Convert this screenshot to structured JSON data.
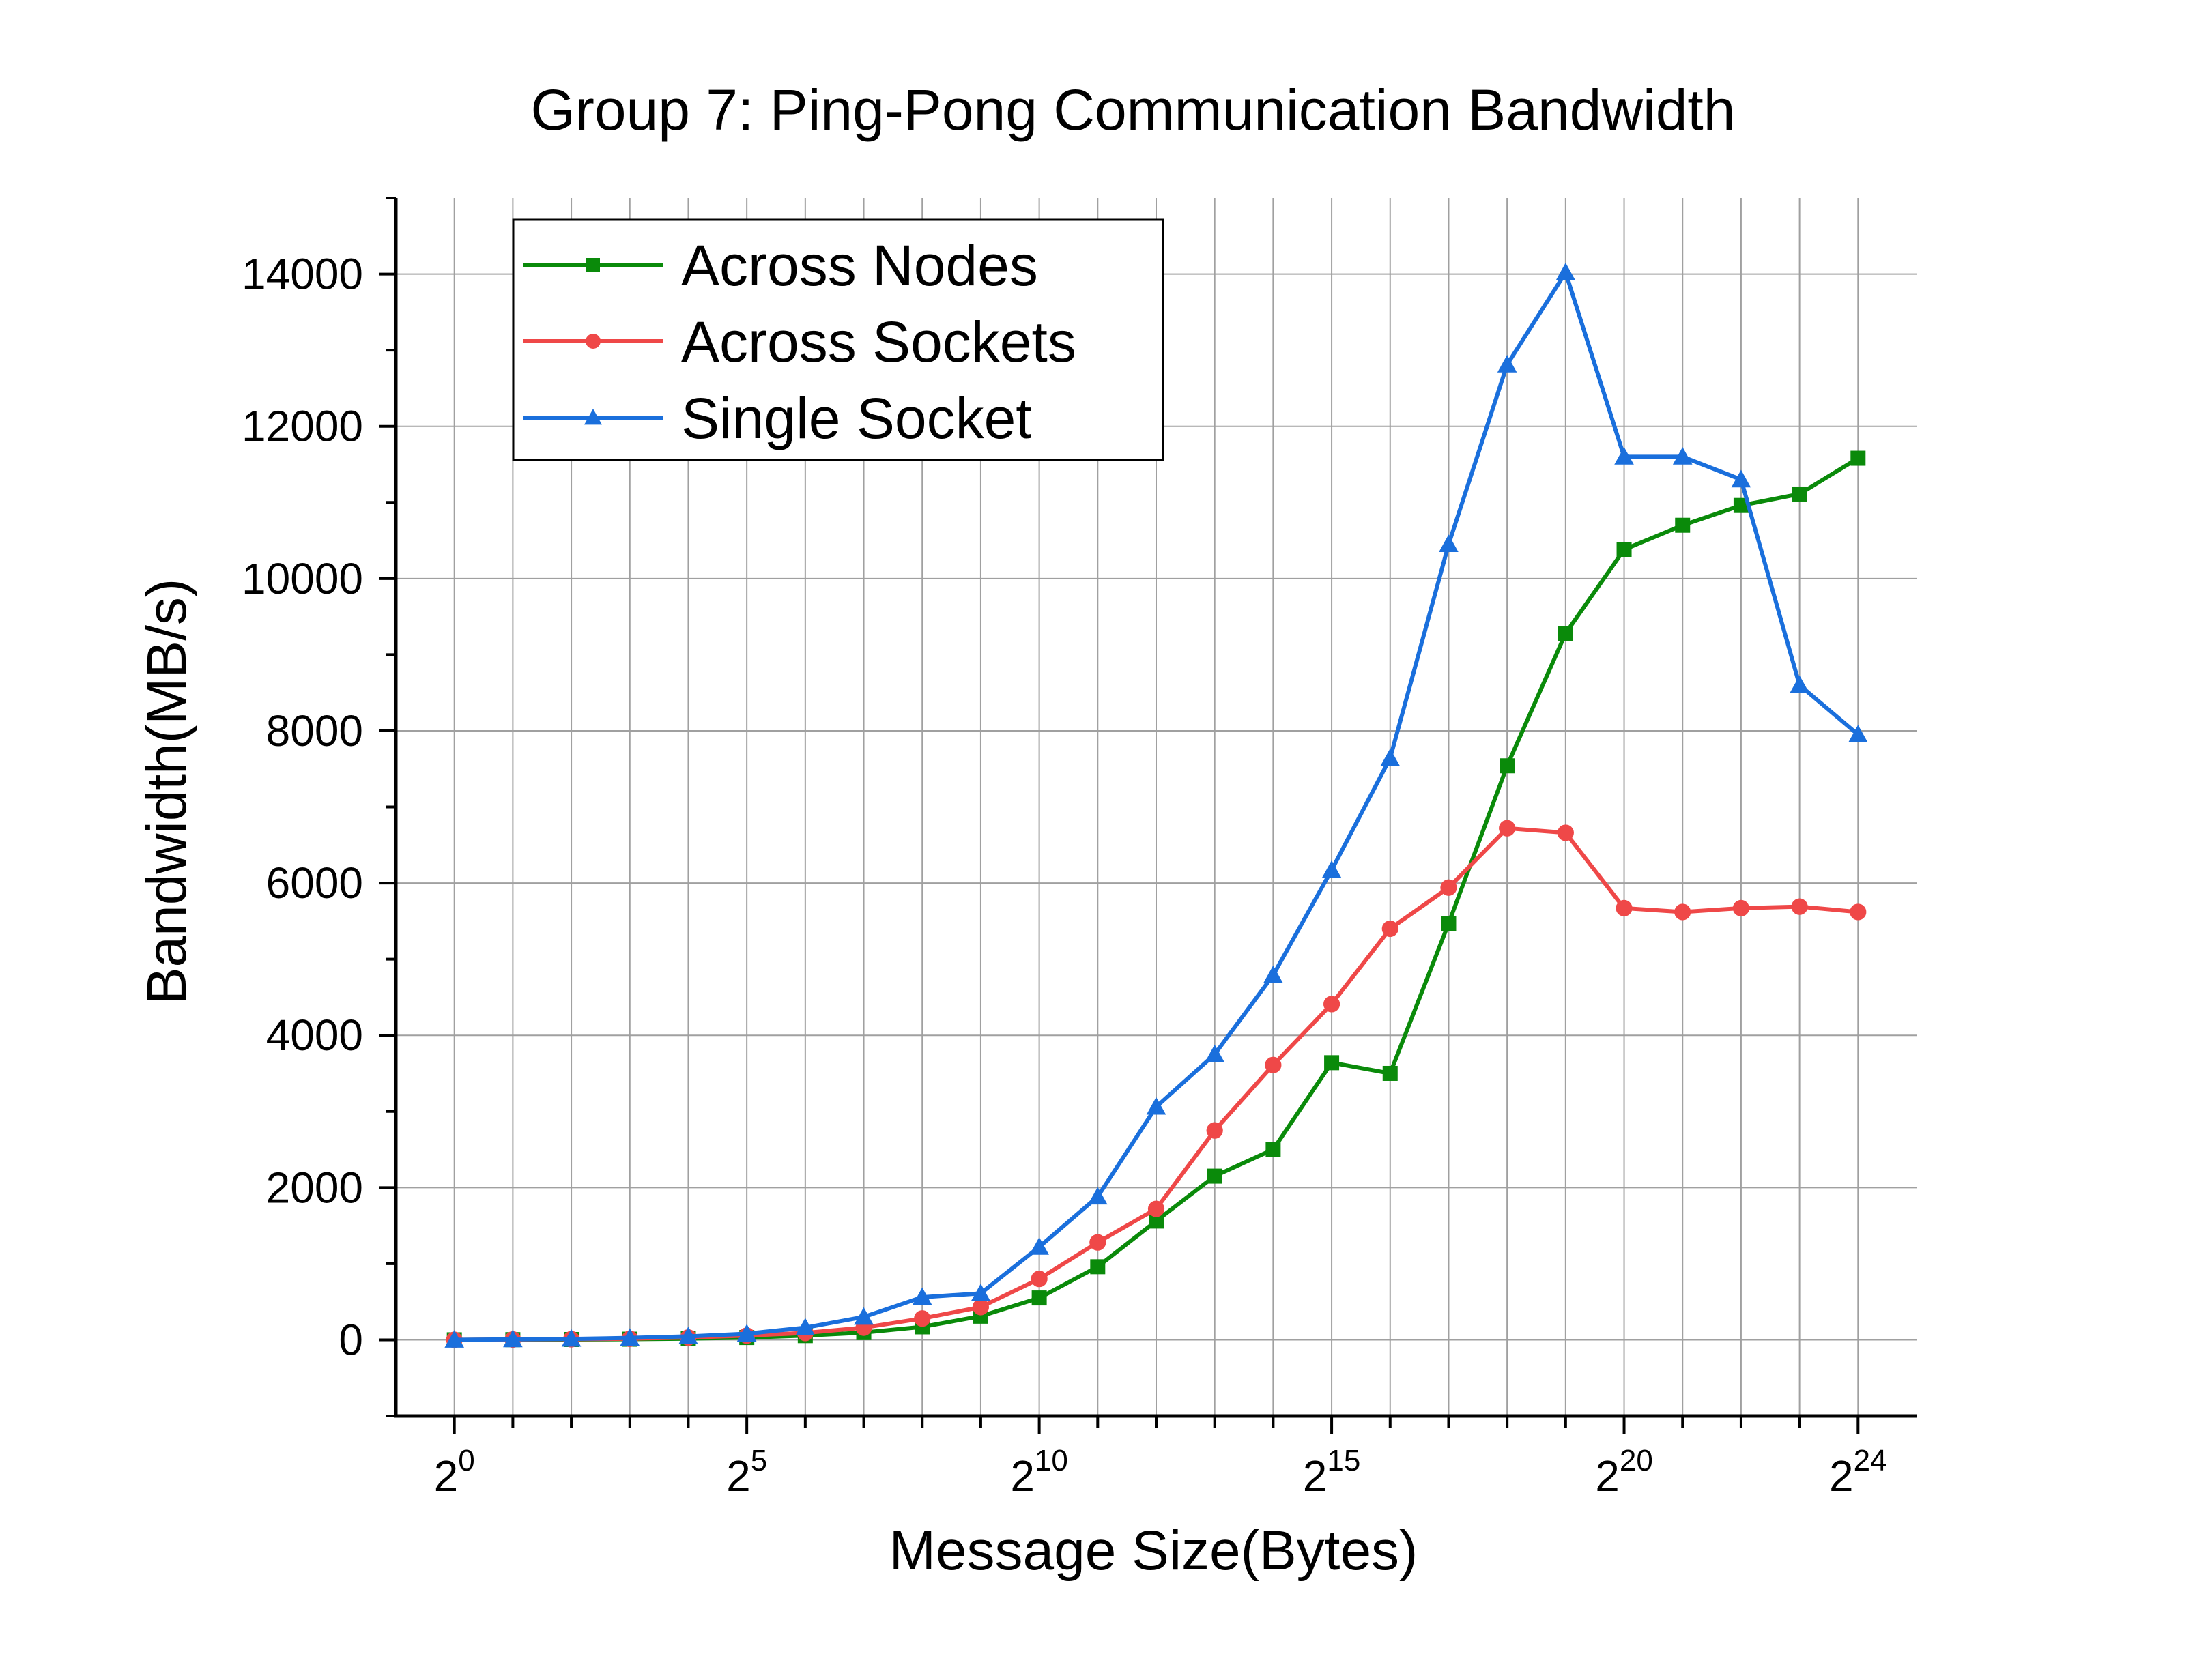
{
  "chart_data": {
    "type": "line",
    "title": "Group 7: Ping-Pong Communication Bandwidth",
    "xlabel": "Message Size(Bytes)",
    "ylabel": "Bandwidth(MB/s)",
    "x_scale": "log2",
    "x": [
      1,
      2,
      4,
      8,
      16,
      32,
      64,
      128,
      256,
      512,
      1024,
      2048,
      4096,
      8192,
      16384,
      32768,
      65536,
      131072,
      262144,
      524288,
      1048576,
      2097152,
      4194304,
      8388608,
      16777216
    ],
    "x_tick_labels": [
      {
        "base": "2",
        "exp": "0"
      },
      {
        "base": "2",
        "exp": "5"
      },
      {
        "base": "2",
        "exp": "10"
      },
      {
        "base": "2",
        "exp": "15"
      },
      {
        "base": "2",
        "exp": "20"
      },
      {
        "base": "2",
        "exp": "24"
      }
    ],
    "x_tick_exponents": [
      0,
      5,
      10,
      15,
      20,
      24
    ],
    "xlim_exponent": [
      -1,
      25
    ],
    "ylim": [
      -1000,
      15000
    ],
    "y_ticks": [
      0,
      2000,
      4000,
      6000,
      8000,
      10000,
      12000,
      14000
    ],
    "y_tick_labels": [
      "0",
      "2000",
      "4000",
      "6000",
      "8000",
      "10000",
      "12000",
      "14000"
    ],
    "grid": true,
    "legend_position": "top-left",
    "series": [
      {
        "name": "Across Nodes",
        "color": "#0a8a0a",
        "marker": "square",
        "values": [
          0,
          2,
          4,
          8,
          15,
          30,
          55,
          95,
          170,
          310,
          550,
          960,
          1560,
          2150,
          2500,
          3640,
          3500,
          5470,
          7540,
          9280,
          10380,
          10700,
          10960,
          11110,
          11580
        ]
      },
      {
        "name": "Across Sockets",
        "color": "#ef4848",
        "marker": "circle",
        "values": [
          0,
          4,
          8,
          15,
          30,
          55,
          90,
          160,
          280,
          430,
          800,
          1280,
          1720,
          2750,
          3610,
          4410,
          5400,
          5940,
          6720,
          6660,
          5670,
          5620,
          5670,
          5690,
          5620
        ]
      },
      {
        "name": "Single Socket",
        "color": "#1a6fdc",
        "marker": "triangle",
        "values": [
          0,
          6,
          12,
          25,
          45,
          80,
          160,
          300,
          560,
          610,
          1220,
          1880,
          3060,
          3750,
          4790,
          6170,
          7640,
          10450,
          12810,
          14020,
          11600,
          11600,
          11300,
          8600,
          7950
        ]
      }
    ]
  }
}
